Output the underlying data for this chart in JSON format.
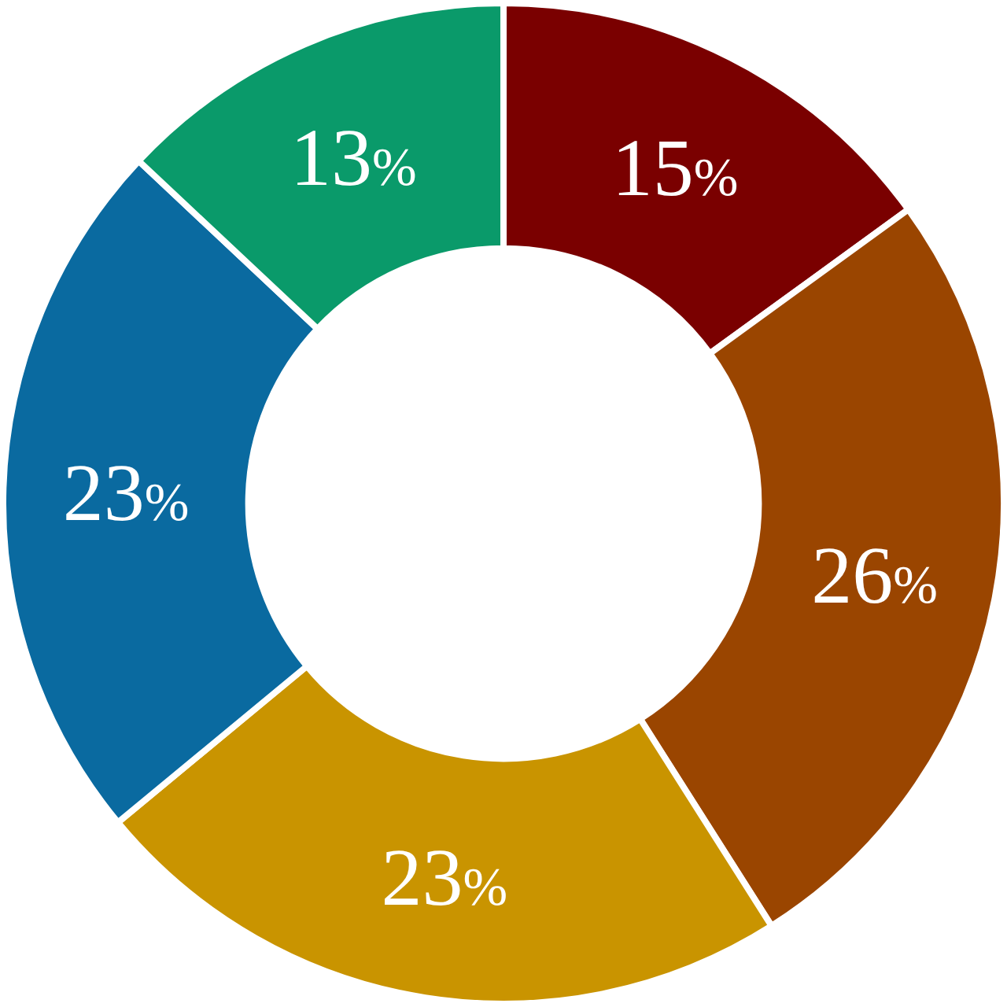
{
  "chart_data": {
    "type": "donut",
    "categories": [
      null,
      null,
      null,
      null,
      null
    ],
    "values": [
      15,
      26,
      23,
      23,
      13
    ],
    "colors": [
      "#7a0000",
      "#9a4500",
      "#c99400",
      "#0a6aa0",
      "#0a9a6a"
    ],
    "value_labels": [
      "15%",
      "26%",
      "23%",
      "23%",
      "13%"
    ],
    "legend": false
  }
}
